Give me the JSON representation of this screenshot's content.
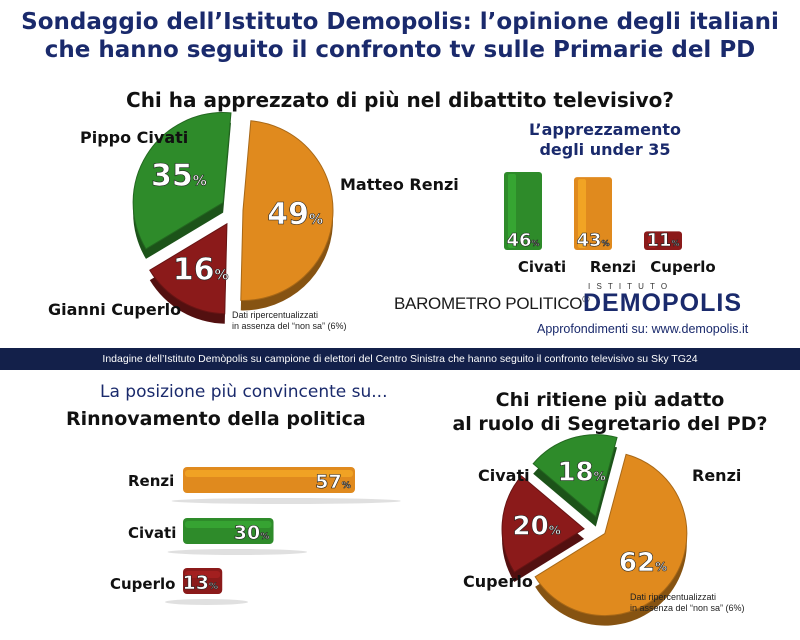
{
  "header": {
    "title_line1": "Sondaggio dell’Istituto Demopolis: l’opinione degli italiani",
    "title_line2": "che hanno seguito il confronto tv sulle Primarie del PD"
  },
  "section1": {
    "question": "Chi ha apprezzato di più nel dibattito televisivo?",
    "note_line1": "Dati ripercentualizzati",
    "note_line2": "in assenza del “non sa” (6%)"
  },
  "under35": {
    "title_line1": "L’apprezzamento",
    "title_line2": "degli under 35"
  },
  "brand": {
    "barometro": "BAROMETRO POLITICO",
    "reg": "®",
    "istituto": "I S T I T U T O",
    "demopolis": "DEMOPOLIS",
    "approfondimenti": "Approfondimenti su: www.demopolis.it"
  },
  "band": {
    "text": "Indagine dell’Istituto Demòpolis su campione di elettori del Centro Sinistra che hanno seguito il confronto televisivo su Sky TG24"
  },
  "section2": {
    "kicker": "La posizione più convincente su...",
    "title": "Rinnovamento della politica"
  },
  "section3": {
    "title_line1": "Chi ritiene più adatto",
    "title_line2": "al ruolo di Segretario del PD?",
    "note_line1": "Dati ripercentualizzati",
    "note_line2": "in assenza del “non sa” (6%)"
  },
  "colors": {
    "green": "#2e8b2a",
    "orange": "#e08a1e",
    "red": "#8b1a1a"
  },
  "chart_data": [
    {
      "type": "pie",
      "title": "Chi ha apprezzato di più nel dibattito televisivo?",
      "labels": [
        "Matteo Renzi",
        "Gianni Cuperlo",
        "Pippo Civati"
      ],
      "values": [
        49,
        16,
        35
      ],
      "value_labels": [
        "49",
        "16",
        "35"
      ],
      "unit": "%",
      "colors": [
        "#e08a1e",
        "#8b1a1a",
        "#2e8b2a"
      ]
    },
    {
      "type": "bar",
      "title": "L’apprezzamento degli under 35",
      "categories": [
        "Civati",
        "Renzi",
        "Cuperlo"
      ],
      "values": [
        46,
        43,
        11
      ],
      "value_labels": [
        "46",
        "43",
        "11"
      ],
      "unit": "%",
      "colors": [
        "#2e8b2a",
        "#e08a1e",
        "#8b1a1a"
      ]
    },
    {
      "type": "bar",
      "orientation": "horizontal",
      "title": "Rinnovamento della politica",
      "categories": [
        "Renzi",
        "Civati",
        "Cuperlo"
      ],
      "values": [
        57,
        30,
        13
      ],
      "value_labels": [
        "57",
        "30",
        "13"
      ],
      "unit": "%",
      "colors": [
        "#e08a1e",
        "#2e8b2a",
        "#8b1a1a"
      ]
    },
    {
      "type": "pie",
      "title": "Chi ritiene più adatto al ruolo di Segretario del PD?",
      "labels": [
        "Renzi",
        "Cuperlo",
        "Civati"
      ],
      "values": [
        62,
        20,
        18
      ],
      "value_labels": [
        "62",
        "20",
        "18"
      ],
      "unit": "%",
      "colors": [
        "#e08a1e",
        "#8b1a1a",
        "#2e8b2a"
      ]
    }
  ]
}
